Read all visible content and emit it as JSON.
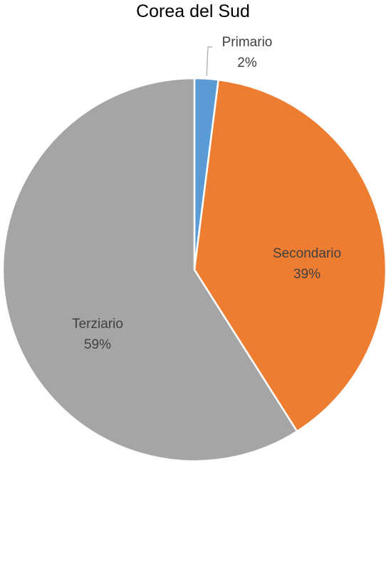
{
  "chart_data": {
    "type": "pie",
    "title": "Corea del Sud",
    "slices": [
      {
        "label": "Primario",
        "value": 2,
        "value_label": "2%",
        "color": "#5b9bd5"
      },
      {
        "label": "Secondario",
        "value": 39,
        "value_label": "39%",
        "color": "#ed7d31"
      },
      {
        "label": "Terziario",
        "value": 59,
        "value_label": "59%",
        "color": "#a5a5a5"
      }
    ],
    "start_angle": "12 o'clock",
    "direction": "clockwise",
    "legend": "none",
    "data_labels": "category name and percentage"
  }
}
